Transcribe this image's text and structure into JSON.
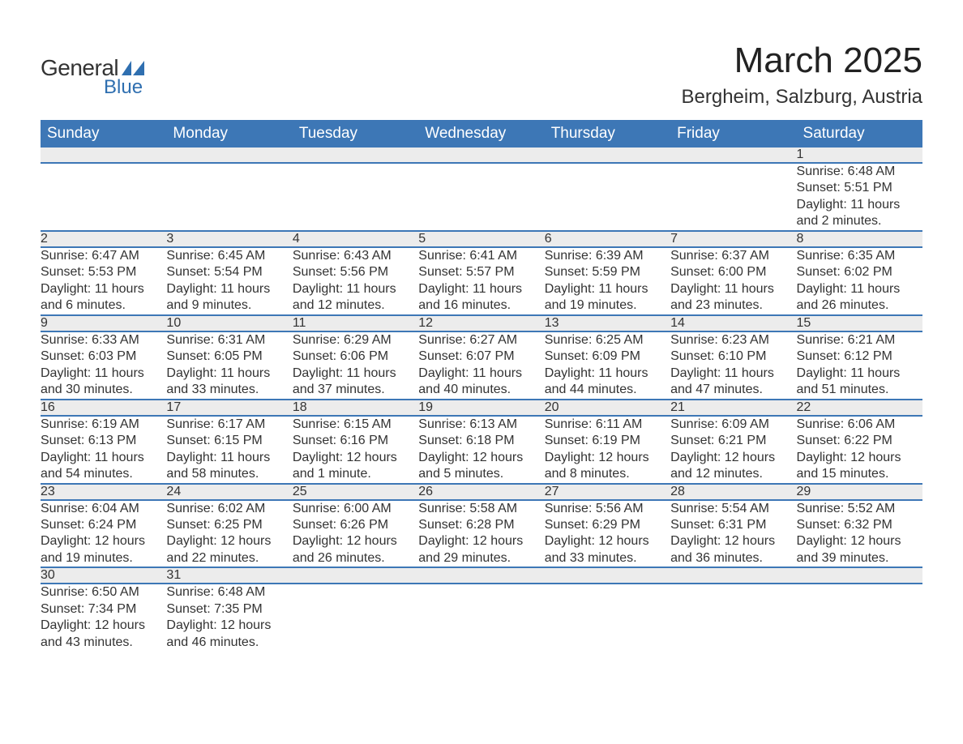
{
  "logo": {
    "text_general": "General",
    "text_blue": "Blue",
    "shape_color": "#2f6fb0"
  },
  "header": {
    "month_title": "March 2025",
    "location": "Bergheim, Salzburg, Austria"
  },
  "style": {
    "header_bg": "#3d77b6",
    "header_text": "#ffffff",
    "daynum_bg": "#ececec",
    "daynum_text": "#555555",
    "row_border": "#3d77b6",
    "body_text": "#333333",
    "month_title_fontsize": 44,
    "location_fontsize": 24,
    "header_fontsize": 19,
    "daynum_fontsize": 18,
    "detail_fontsize": 16
  },
  "calendar": {
    "day_headers": [
      "Sunday",
      "Monday",
      "Tuesday",
      "Wednesday",
      "Thursday",
      "Friday",
      "Saturday"
    ],
    "weeks": [
      [
        null,
        null,
        null,
        null,
        null,
        null,
        {
          "n": "1",
          "sunrise": "Sunrise: 6:48 AM",
          "sunset": "Sunset: 5:51 PM",
          "daylight": "Daylight: 11 hours and 2 minutes."
        }
      ],
      [
        {
          "n": "2",
          "sunrise": "Sunrise: 6:47 AM",
          "sunset": "Sunset: 5:53 PM",
          "daylight": "Daylight: 11 hours and 6 minutes."
        },
        {
          "n": "3",
          "sunrise": "Sunrise: 6:45 AM",
          "sunset": "Sunset: 5:54 PM",
          "daylight": "Daylight: 11 hours and 9 minutes."
        },
        {
          "n": "4",
          "sunrise": "Sunrise: 6:43 AM",
          "sunset": "Sunset: 5:56 PM",
          "daylight": "Daylight: 11 hours and 12 minutes."
        },
        {
          "n": "5",
          "sunrise": "Sunrise: 6:41 AM",
          "sunset": "Sunset: 5:57 PM",
          "daylight": "Daylight: 11 hours and 16 minutes."
        },
        {
          "n": "6",
          "sunrise": "Sunrise: 6:39 AM",
          "sunset": "Sunset: 5:59 PM",
          "daylight": "Daylight: 11 hours and 19 minutes."
        },
        {
          "n": "7",
          "sunrise": "Sunrise: 6:37 AM",
          "sunset": "Sunset: 6:00 PM",
          "daylight": "Daylight: 11 hours and 23 minutes."
        },
        {
          "n": "8",
          "sunrise": "Sunrise: 6:35 AM",
          "sunset": "Sunset: 6:02 PM",
          "daylight": "Daylight: 11 hours and 26 minutes."
        }
      ],
      [
        {
          "n": "9",
          "sunrise": "Sunrise: 6:33 AM",
          "sunset": "Sunset: 6:03 PM",
          "daylight": "Daylight: 11 hours and 30 minutes."
        },
        {
          "n": "10",
          "sunrise": "Sunrise: 6:31 AM",
          "sunset": "Sunset: 6:05 PM",
          "daylight": "Daylight: 11 hours and 33 minutes."
        },
        {
          "n": "11",
          "sunrise": "Sunrise: 6:29 AM",
          "sunset": "Sunset: 6:06 PM",
          "daylight": "Daylight: 11 hours and 37 minutes."
        },
        {
          "n": "12",
          "sunrise": "Sunrise: 6:27 AM",
          "sunset": "Sunset: 6:07 PM",
          "daylight": "Daylight: 11 hours and 40 minutes."
        },
        {
          "n": "13",
          "sunrise": "Sunrise: 6:25 AM",
          "sunset": "Sunset: 6:09 PM",
          "daylight": "Daylight: 11 hours and 44 minutes."
        },
        {
          "n": "14",
          "sunrise": "Sunrise: 6:23 AM",
          "sunset": "Sunset: 6:10 PM",
          "daylight": "Daylight: 11 hours and 47 minutes."
        },
        {
          "n": "15",
          "sunrise": "Sunrise: 6:21 AM",
          "sunset": "Sunset: 6:12 PM",
          "daylight": "Daylight: 11 hours and 51 minutes."
        }
      ],
      [
        {
          "n": "16",
          "sunrise": "Sunrise: 6:19 AM",
          "sunset": "Sunset: 6:13 PM",
          "daylight": "Daylight: 11 hours and 54 minutes."
        },
        {
          "n": "17",
          "sunrise": "Sunrise: 6:17 AM",
          "sunset": "Sunset: 6:15 PM",
          "daylight": "Daylight: 11 hours and 58 minutes."
        },
        {
          "n": "18",
          "sunrise": "Sunrise: 6:15 AM",
          "sunset": "Sunset: 6:16 PM",
          "daylight": "Daylight: 12 hours and 1 minute."
        },
        {
          "n": "19",
          "sunrise": "Sunrise: 6:13 AM",
          "sunset": "Sunset: 6:18 PM",
          "daylight": "Daylight: 12 hours and 5 minutes."
        },
        {
          "n": "20",
          "sunrise": "Sunrise: 6:11 AM",
          "sunset": "Sunset: 6:19 PM",
          "daylight": "Daylight: 12 hours and 8 minutes."
        },
        {
          "n": "21",
          "sunrise": "Sunrise: 6:09 AM",
          "sunset": "Sunset: 6:21 PM",
          "daylight": "Daylight: 12 hours and 12 minutes."
        },
        {
          "n": "22",
          "sunrise": "Sunrise: 6:06 AM",
          "sunset": "Sunset: 6:22 PM",
          "daylight": "Daylight: 12 hours and 15 minutes."
        }
      ],
      [
        {
          "n": "23",
          "sunrise": "Sunrise: 6:04 AM",
          "sunset": "Sunset: 6:24 PM",
          "daylight": "Daylight: 12 hours and 19 minutes."
        },
        {
          "n": "24",
          "sunrise": "Sunrise: 6:02 AM",
          "sunset": "Sunset: 6:25 PM",
          "daylight": "Daylight: 12 hours and 22 minutes."
        },
        {
          "n": "25",
          "sunrise": "Sunrise: 6:00 AM",
          "sunset": "Sunset: 6:26 PM",
          "daylight": "Daylight: 12 hours and 26 minutes."
        },
        {
          "n": "26",
          "sunrise": "Sunrise: 5:58 AM",
          "sunset": "Sunset: 6:28 PM",
          "daylight": "Daylight: 12 hours and 29 minutes."
        },
        {
          "n": "27",
          "sunrise": "Sunrise: 5:56 AM",
          "sunset": "Sunset: 6:29 PM",
          "daylight": "Daylight: 12 hours and 33 minutes."
        },
        {
          "n": "28",
          "sunrise": "Sunrise: 5:54 AM",
          "sunset": "Sunset: 6:31 PM",
          "daylight": "Daylight: 12 hours and 36 minutes."
        },
        {
          "n": "29",
          "sunrise": "Sunrise: 5:52 AM",
          "sunset": "Sunset: 6:32 PM",
          "daylight": "Daylight: 12 hours and 39 minutes."
        }
      ],
      [
        {
          "n": "30",
          "sunrise": "Sunrise: 6:50 AM",
          "sunset": "Sunset: 7:34 PM",
          "daylight": "Daylight: 12 hours and 43 minutes."
        },
        {
          "n": "31",
          "sunrise": "Sunrise: 6:48 AM",
          "sunset": "Sunset: 7:35 PM",
          "daylight": "Daylight: 12 hours and 46 minutes."
        },
        null,
        null,
        null,
        null,
        null
      ]
    ]
  }
}
